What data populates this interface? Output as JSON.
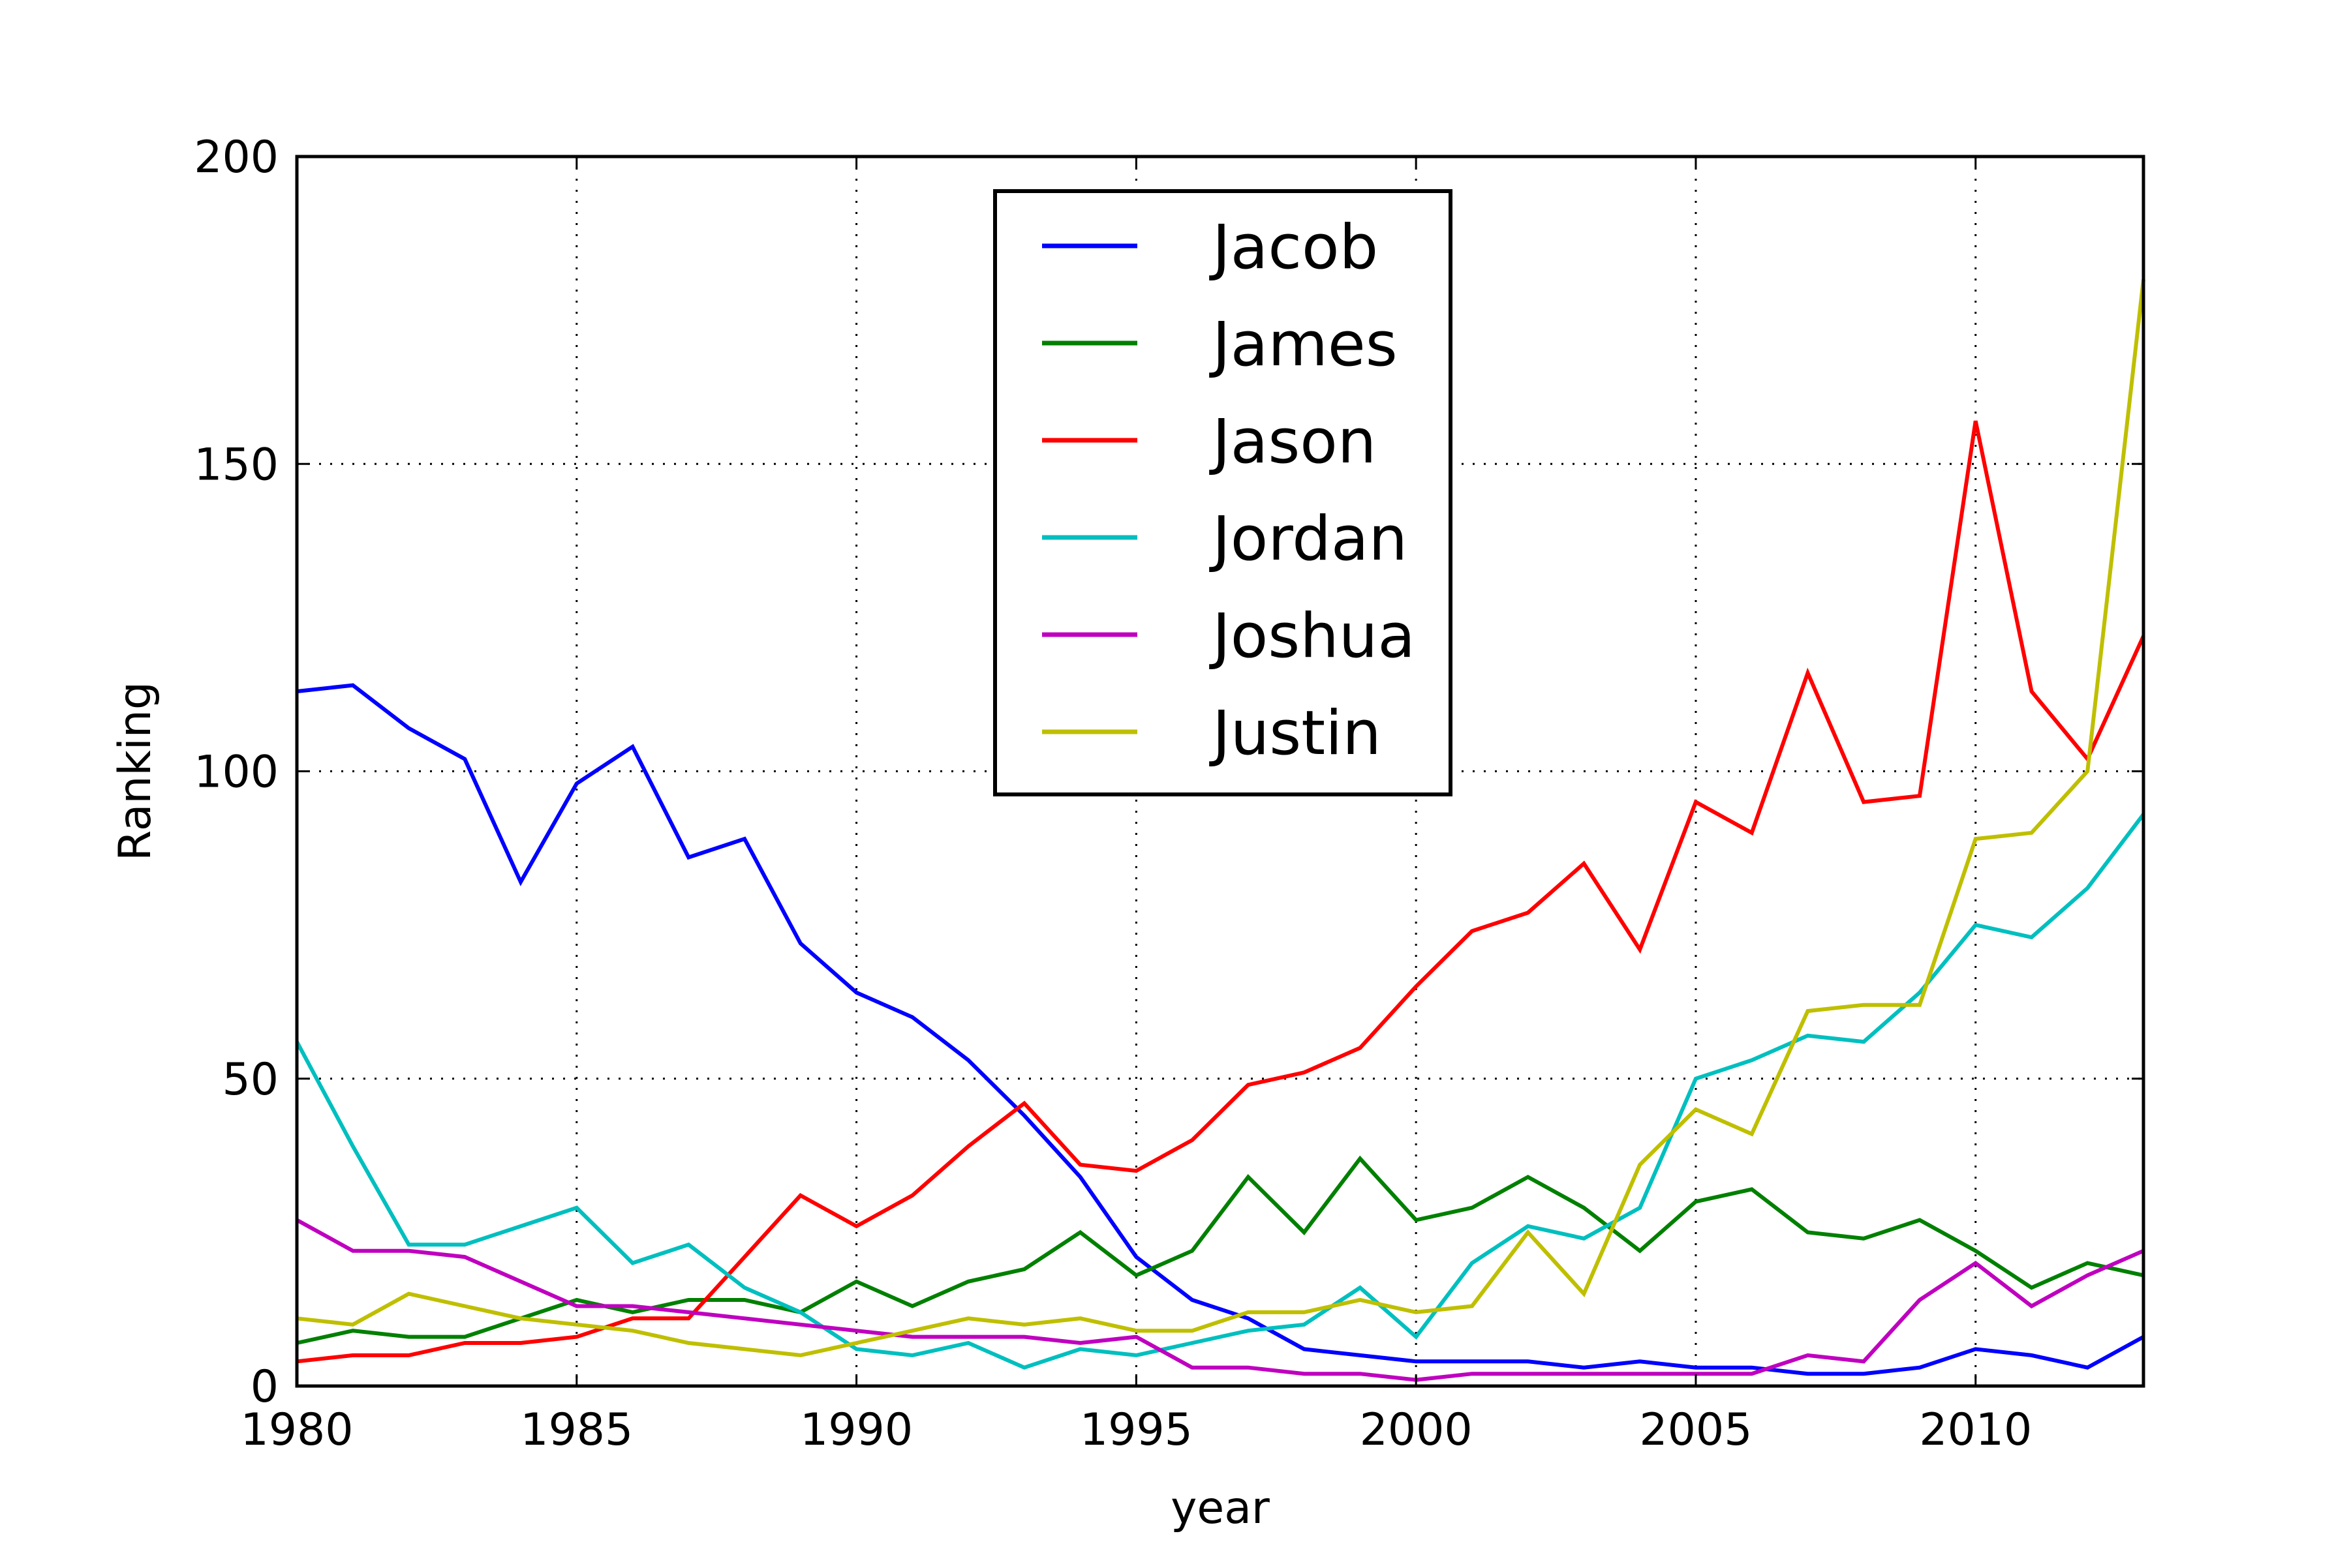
{
  "chart_data": {
    "type": "line",
    "title": "",
    "xlabel": "year",
    "ylabel": "Ranking",
    "xlim": [
      1980,
      2013
    ],
    "ylim": [
      0,
      200
    ],
    "xticks": [
      1980,
      1985,
      1990,
      1995,
      2000,
      2005,
      2010
    ],
    "yticks": [
      0,
      50,
      100,
      150,
      200
    ],
    "grid": true,
    "legend_position": "upper center",
    "x": [
      1980,
      1981,
      1982,
      1983,
      1984,
      1985,
      1986,
      1987,
      1988,
      1989,
      1990,
      1991,
      1992,
      1993,
      1994,
      1995,
      1996,
      1997,
      1998,
      1999,
      2000,
      2001,
      2002,
      2003,
      2004,
      2005,
      2006,
      2007,
      2008,
      2009,
      2010,
      2011,
      2012,
      2013
    ],
    "series": [
      {
        "name": "Jacob",
        "color": "#0000ff",
        "values": [
          113,
          114,
          107,
          102,
          82,
          98,
          104,
          86,
          89,
          72,
          64,
          60,
          53,
          44,
          34,
          21,
          14,
          11,
          6,
          5,
          4,
          4,
          4,
          3,
          4,
          3,
          3,
          2,
          2,
          3,
          6,
          5,
          3,
          8
        ]
      },
      {
        "name": "James",
        "color": "#008000",
        "values": [
          7,
          9,
          8,
          8,
          11,
          14,
          12,
          14,
          14,
          12,
          17,
          13,
          17,
          19,
          25,
          18,
          22,
          34,
          25,
          37,
          27,
          29,
          34,
          29,
          22,
          30,
          32,
          25,
          24,
          27,
          22,
          16,
          20,
          18
        ]
      },
      {
        "name": "Jason",
        "color": "#ff0000",
        "values": [
          4,
          5,
          5,
          7,
          7,
          8,
          11,
          11,
          21,
          31,
          26,
          31,
          39,
          46,
          36,
          35,
          40,
          49,
          51,
          55,
          65,
          74,
          77,
          85,
          71,
          95,
          90,
          116,
          95,
          96,
          157,
          113,
          102,
          122
        ]
      },
      {
        "name": "Jordan",
        "color": "#00bfbf",
        "values": [
          56,
          39,
          23,
          23,
          26,
          29,
          20,
          23,
          16,
          12,
          6,
          5,
          7,
          3,
          6,
          5,
          7,
          9,
          10,
          16,
          8,
          20,
          26,
          24,
          29,
          50,
          53,
          57,
          56,
          64,
          75,
          73,
          81,
          93
        ]
      },
      {
        "name": "Joshua",
        "color": "#bf00bf",
        "values": [
          27,
          22,
          22,
          21,
          17,
          13,
          13,
          12,
          11,
          10,
          9,
          8,
          8,
          8,
          7,
          8,
          3,
          3,
          2,
          2,
          1,
          2,
          2,
          2,
          2,
          2,
          2,
          5,
          4,
          14,
          20,
          13,
          18,
          22
        ]
      },
      {
        "name": "Justin",
        "color": "#bfbf00",
        "values": [
          11,
          10,
          15,
          13,
          11,
          10,
          9,
          7,
          6,
          5,
          7,
          9,
          11,
          10,
          11,
          9,
          9,
          12,
          12,
          14,
          12,
          13,
          25,
          15,
          36,
          45,
          41,
          61,
          62,
          62,
          89,
          90,
          100,
          180
        ]
      }
    ]
  }
}
